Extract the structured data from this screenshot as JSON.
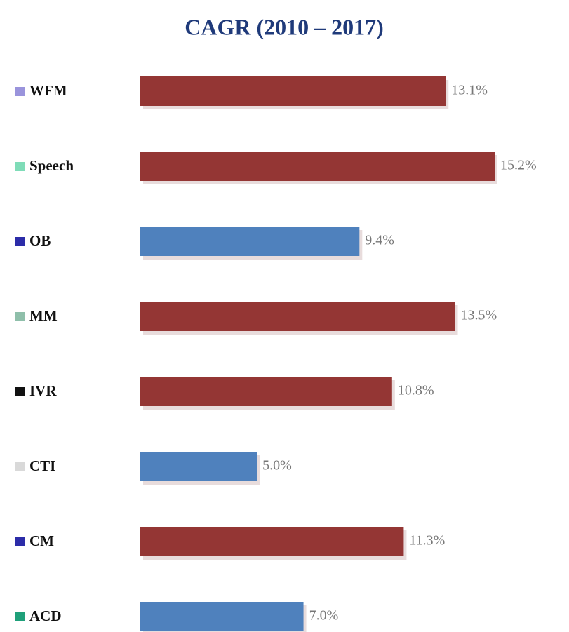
{
  "chart_data": {
    "type": "barh",
    "title": "CAGR (2010 – 2017)",
    "categories": [
      "WFM",
      "Speech",
      "OB",
      "MM",
      "IVR",
      "CTI",
      "CM",
      "ACD"
    ],
    "values": [
      13.1,
      15.2,
      9.4,
      13.5,
      10.8,
      5.0,
      11.3,
      7.0
    ],
    "value_labels": [
      "13.1%",
      "15.2%",
      "9.4%",
      "13.5%",
      "10.8%",
      "5.0%",
      "11.3%",
      "7.0%"
    ],
    "colors": [
      "#943634",
      "#943634",
      "#4f81bd",
      "#943634",
      "#943634",
      "#4f81bd",
      "#943634",
      "#4f81bd"
    ],
    "legend_colors": [
      "#9a94dc",
      "#7fdcb8",
      "#2c2ca8",
      "#8fbfaa",
      "#111111",
      "#d9d9d9",
      "#2c2ca8",
      "#1fa07a"
    ]
  }
}
